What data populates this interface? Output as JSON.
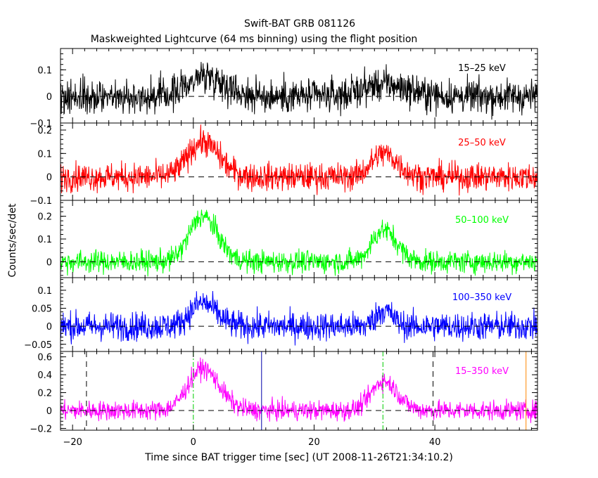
{
  "title": "Swift-BAT GRB 081126",
  "subtitle": "Maskweighted Lightcurve (64 ms binning) using the flight position",
  "chart_data": {
    "type": "line",
    "title": "Swift-BAT GRB 081126",
    "subtitle": "Maskweighted Lightcurve (64 ms binning) using the flight position",
    "xlabel": "Time since BAT trigger time [sec] (UT 2008-11-26T21:34:10.2)",
    "ylabel": "Counts/sec/det",
    "xlim": [
      -22,
      57
    ],
    "x_ticks": [
      -20,
      0,
      20,
      40
    ],
    "x_tick_labels": [
      "−20",
      "0",
      "20",
      "40"
    ],
    "bin_size_sec": 0.064,
    "grid": false,
    "panels": [
      {
        "band": "15–25 keV",
        "color": "#000000",
        "ylim": [
          -0.1,
          0.18
        ],
        "y_ticks": [
          -0.1,
          0,
          0.1
        ],
        "y_tick_labels": [
          "−0.1",
          "0",
          "0.1"
        ],
        "peaks": [
          {
            "t": 2.0,
            "value": 0.08,
            "width": 2.8
          },
          {
            "t": 31.5,
            "value": 0.045,
            "width": 3.5
          }
        ],
        "noise_sigma": 0.032
      },
      {
        "band": "25–50 keV",
        "color": "#ff0000",
        "ylim": [
          -0.1,
          0.23
        ],
        "y_ticks": [
          -0.1,
          0,
          0.1,
          0.2
        ],
        "y_tick_labels": [
          "−0.1",
          "0",
          "0.1",
          "0.2"
        ],
        "peaks": [
          {
            "t": 1.5,
            "value": 0.15,
            "width": 2.4
          },
          {
            "t": 31.5,
            "value": 0.1,
            "width": 2.0
          }
        ],
        "noise_sigma": 0.03
      },
      {
        "band": "50–100 keV",
        "color": "#00ff00",
        "ylim": [
          -0.07,
          0.27
        ],
        "y_ticks": [
          0,
          0.1,
          0.2
        ],
        "y_tick_labels": [
          "0",
          "0.1",
          "0.2"
        ],
        "peaks": [
          {
            "t": 1.5,
            "value": 0.2,
            "width": 2.2
          },
          {
            "t": 31.5,
            "value": 0.14,
            "width": 1.9
          }
        ],
        "noise_sigma": 0.025
      },
      {
        "band": "100–350 keV",
        "color": "#0000ff",
        "ylim": [
          -0.07,
          0.135
        ],
        "y_ticks": [
          -0.05,
          0,
          0.05,
          0.1
        ],
        "y_tick_labels": [
          "−0.05",
          "0",
          "0.05",
          "0.1"
        ],
        "peaks": [
          {
            "t": 1.5,
            "value": 0.065,
            "width": 2.0
          },
          {
            "t": 31.5,
            "value": 0.045,
            "width": 1.3
          }
        ],
        "noise_sigma": 0.02
      },
      {
        "band": "15–350 keV",
        "color": "#ff00ff",
        "ylim": [
          -0.22,
          0.66
        ],
        "y_ticks": [
          -0.2,
          0,
          0.2,
          0.4,
          0.6
        ],
        "y_tick_labels": [
          "−0.2",
          "0",
          "0.2",
          "0.4",
          "0.6"
        ],
        "peaks": [
          {
            "t": 1.5,
            "value": 0.47,
            "width": 2.4
          },
          {
            "t": 31.5,
            "value": 0.33,
            "width": 2.0
          }
        ],
        "noise_sigma": 0.055,
        "markers": [
          {
            "t": -17.7,
            "color": "#000000",
            "style": "dashed"
          },
          {
            "t": 0,
            "color": "#00cc00",
            "style": "dashdot"
          },
          {
            "t": 11.3,
            "color": "#0000aa",
            "style": "solid"
          },
          {
            "t": 31.4,
            "color": "#00cc00",
            "style": "dashdot"
          },
          {
            "t": 39.7,
            "color": "#000000",
            "style": "dashed"
          },
          {
            "t": 55.1,
            "color": "#ff8800",
            "style": "solid"
          }
        ]
      }
    ]
  }
}
